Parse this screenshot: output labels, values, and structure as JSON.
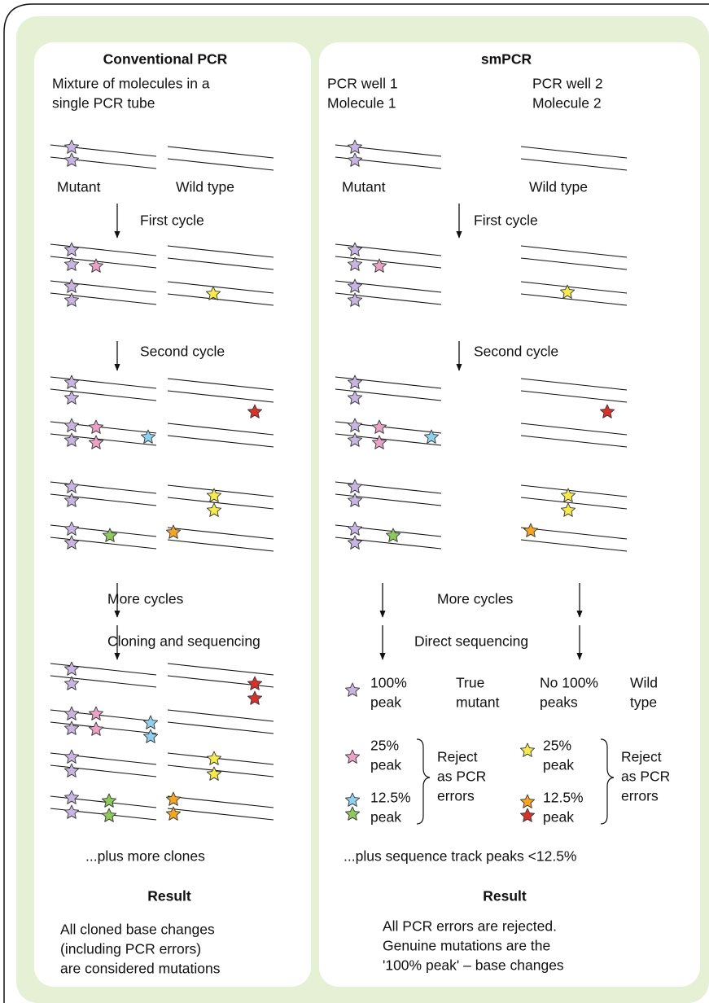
{
  "conventional": {
    "title": "Conventional PCR",
    "description": [
      "Mixture of molecules in a",
      "single PCR tube"
    ],
    "mutant_label": "Mutant",
    "wild_type_label": "Wild type",
    "steps": [
      "First cycle",
      "Second cycle",
      "More cycles",
      "Cloning and sequencing"
    ],
    "note": "...plus more clones",
    "result_title": "Result",
    "result_text": [
      "All cloned base changes",
      "(including PCR errors)",
      "are considered mutations"
    ]
  },
  "smpcr": {
    "title": "smPCR",
    "wells": [
      [
        "PCR well 1",
        "Molecule 1"
      ],
      [
        "PCR well 2",
        "Molecule 2"
      ]
    ],
    "mutant_label": "Mutant",
    "wild_type_label": "Wild type",
    "steps": [
      "First cycle",
      "Second cycle",
      "More cycles",
      "Direct sequencing"
    ],
    "legend": {
      "mutant_peak": [
        "100%",
        "peak"
      ],
      "mutant_meaning": [
        "True",
        "mutant"
      ],
      "wild_peak": [
        "No 100%",
        "peaks"
      ],
      "wild_meaning": [
        "Wild",
        "type"
      ],
      "errors_left": [
        [
          "25%",
          "peak"
        ],
        [
          "12.5%",
          "peak"
        ]
      ],
      "reject_left": [
        "Reject",
        "as PCR",
        "errors"
      ],
      "errors_right": [
        [
          "25%",
          "peak"
        ],
        [
          "12.5%",
          "peak"
        ]
      ],
      "reject_right": [
        "Reject",
        "as PCR",
        "errors"
      ]
    },
    "note": "...plus sequence track peaks <12.5%",
    "result_title": "Result",
    "result_text": [
      "All PCR errors are rejected.",
      "Genuine mutations are the",
      "'100% peak' – base changes"
    ]
  }
}
